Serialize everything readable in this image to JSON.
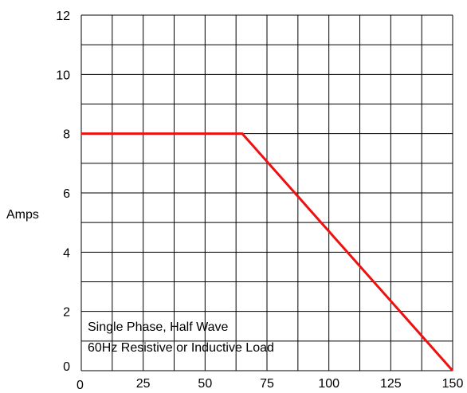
{
  "chart_data": {
    "type": "line",
    "title": "",
    "xlabel": "",
    "ylabel": "Amps",
    "xlim": [
      0,
      150
    ],
    "ylim": [
      0,
      12
    ],
    "grid": true,
    "x_ticks": [
      0,
      25,
      50,
      75,
      100,
      125,
      150
    ],
    "y_ticks": [
      0,
      2,
      4,
      6,
      8,
      10,
      12
    ],
    "series": [
      {
        "color": "#ee1111",
        "x": [
          0,
          65,
          150
        ],
        "y": [
          8,
          8,
          0
        ]
      }
    ],
    "annotations": [
      "Single Phase, Half Wave",
      "60Hz Resistive or Inductive Load"
    ]
  }
}
